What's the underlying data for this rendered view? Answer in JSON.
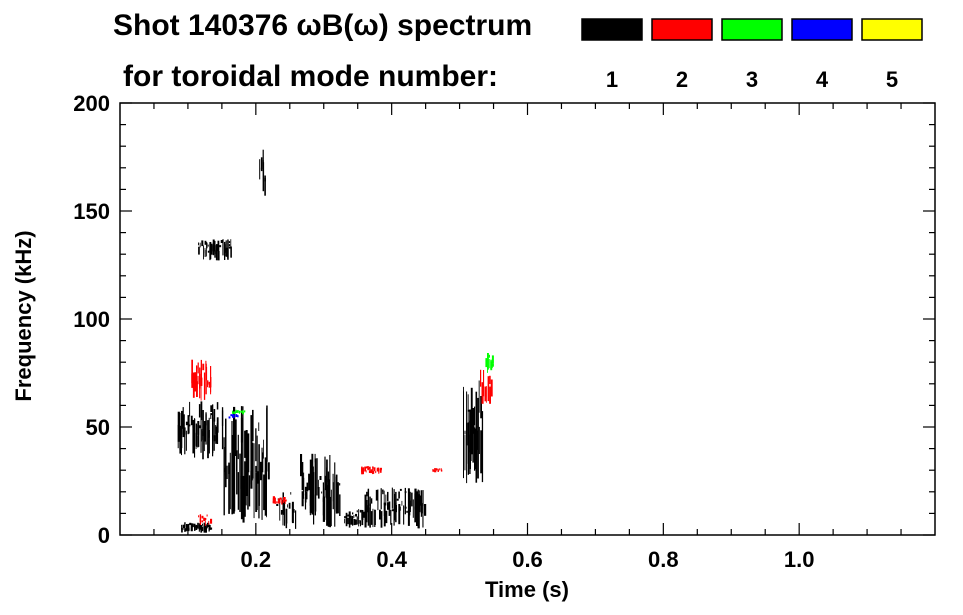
{
  "chart_data": {
    "type": "heatmap",
    "title_line1": "Shot 140376 ωB(ω) spectrum",
    "title_line2": "for toroidal mode number:",
    "xlabel": "Time (s)",
    "ylabel": "Frequency (kHz)",
    "xlim": [
      0.0,
      1.2
    ],
    "ylim": [
      0,
      200
    ],
    "x_ticks": [
      "0.2",
      "0.4",
      "0.6",
      "0.8",
      "1.0"
    ],
    "x_tick_values": [
      0.2,
      0.4,
      0.6,
      0.8,
      1.0
    ],
    "y_ticks": [
      "0",
      "50",
      "100",
      "150",
      "200"
    ],
    "y_tick_values": [
      0,
      50,
      100,
      150,
      200
    ],
    "legend": [
      {
        "mode": "1",
        "color": "#000000"
      },
      {
        "mode": "2",
        "color": "#ff0000"
      },
      {
        "mode": "3",
        "color": "#00ff00"
      },
      {
        "mode": "4",
        "color": "#0000ff"
      },
      {
        "mode": "5",
        "color": "#ffff00"
      }
    ],
    "series": [
      {
        "mode": "1",
        "color": "#000000",
        "regions": [
          {
            "t": [
              0.085,
              0.145
            ],
            "f": [
              35,
              62
            ]
          },
          {
            "t": [
              0.09,
              0.135
            ],
            "f": [
              1,
              6
            ]
          },
          {
            "t": [
              0.115,
              0.165
            ],
            "f": [
              127,
              137
            ]
          },
          {
            "t": [
              0.15,
              0.22
            ],
            "f": [
              5,
              60
            ]
          },
          {
            "t": [
              0.205,
              0.215
            ],
            "f": [
              150,
              185
            ]
          },
          {
            "t": [
              0.23,
              0.26
            ],
            "f": [
              2,
              20
            ]
          },
          {
            "t": [
              0.265,
              0.325
            ],
            "f": [
              3,
              38
            ]
          },
          {
            "t": [
              0.33,
              0.36
            ],
            "f": [
              3,
              12
            ]
          },
          {
            "t": [
              0.36,
              0.45
            ],
            "f": [
              3,
              22
            ]
          },
          {
            "t": [
              0.505,
              0.535
            ],
            "f": [
              24,
              72
            ]
          }
        ]
      },
      {
        "mode": "2",
        "color": "#ff0000",
        "regions": [
          {
            "t": [
              0.105,
              0.135
            ],
            "f": [
              62,
              82
            ]
          },
          {
            "t": [
              0.115,
              0.135
            ],
            "f": [
              4,
              10
            ]
          },
          {
            "t": [
              0.225,
              0.245
            ],
            "f": [
              14,
              18
            ]
          },
          {
            "t": [
              0.355,
              0.385
            ],
            "f": [
              28,
              32
            ]
          },
          {
            "t": [
              0.46,
              0.475
            ],
            "f": [
              29,
              31
            ]
          },
          {
            "t": [
              0.53,
              0.548
            ],
            "f": [
              60,
              80
            ]
          }
        ]
      },
      {
        "mode": "3",
        "color": "#00ff00",
        "regions": [
          {
            "t": [
              0.538,
              0.55
            ],
            "f": [
              74,
              85
            ]
          },
          {
            "t": [
              0.165,
              0.185
            ],
            "f": [
              56,
              58
            ]
          }
        ]
      },
      {
        "mode": "4",
        "color": "#0000ff",
        "regions": [
          {
            "t": [
              0.16,
              0.175
            ],
            "f": [
              54,
              56
            ]
          }
        ]
      },
      {
        "mode": "5",
        "color": "#ffff00",
        "regions": []
      }
    ]
  }
}
